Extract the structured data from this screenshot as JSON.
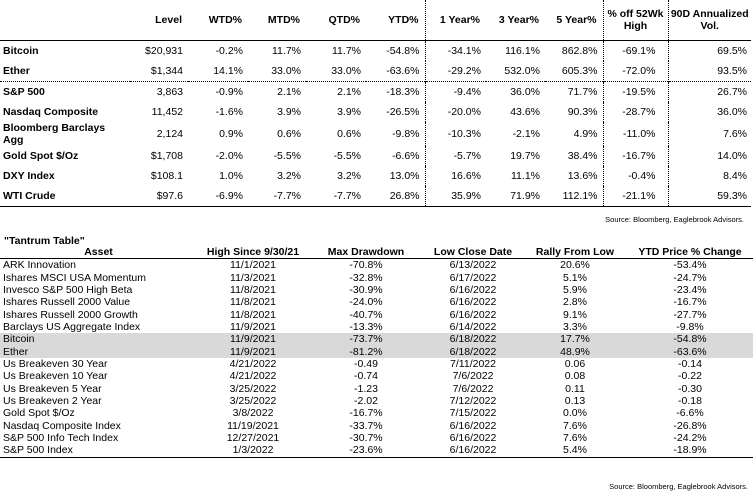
{
  "performance_table": {
    "headers": {
      "level": "Level",
      "wtd": "WTD%",
      "mtd": "MTD%",
      "qtd": "QTD%",
      "ytd": "YTD%",
      "one_year": "1 Year%",
      "three_year": "3 Year%",
      "five_year": "5 Year%",
      "off_52wk": "% off 52Wk High",
      "vol_90d": "90D Annualized Vol."
    },
    "rows": [
      {
        "name": "Bitcoin",
        "level": "$20,931",
        "wtd": "-0.2%",
        "mtd": "11.7%",
        "qtd": "11.7%",
        "ytd": "-54.8%",
        "one_year": "-34.1%",
        "three_year": "116.1%",
        "five_year": "862.8%",
        "off_52wk": "-69.1%",
        "vol_90d": "69.5%"
      },
      {
        "name": "Ether",
        "level": "$1,344",
        "wtd": "14.1%",
        "mtd": "33.0%",
        "qtd": "33.0%",
        "ytd": "-63.6%",
        "one_year": "-29.2%",
        "three_year": "532.0%",
        "five_year": "605.3%",
        "off_52wk": "-72.0%",
        "vol_90d": "93.5%"
      },
      {
        "name": "S&P 500",
        "level": "3,863",
        "wtd": "-0.9%",
        "mtd": "2.1%",
        "qtd": "2.1%",
        "ytd": "-18.3%",
        "one_year": "-9.4%",
        "three_year": "36.0%",
        "five_year": "71.7%",
        "off_52wk": "-19.5%",
        "vol_90d": "26.7%"
      },
      {
        "name": "Nasdaq Composite",
        "level": "11,452",
        "wtd": "-1.6%",
        "mtd": "3.9%",
        "qtd": "3.9%",
        "ytd": "-26.5%",
        "one_year": "-20.0%",
        "three_year": "43.6%",
        "five_year": "90.3%",
        "off_52wk": "-28.7%",
        "vol_90d": "36.0%"
      },
      {
        "name": "Bloomberg Barclays Agg",
        "level": "2,124",
        "wtd": "0.9%",
        "mtd": "0.6%",
        "qtd": "0.6%",
        "ytd": "-9.8%",
        "one_year": "-10.3%",
        "three_year": "-2.1%",
        "five_year": "4.9%",
        "off_52wk": "-11.0%",
        "vol_90d": "7.6%"
      },
      {
        "name": "Gold Spot $/Oz",
        "level": "$1,708",
        "wtd": "-2.0%",
        "mtd": "-5.5%",
        "qtd": "-5.5%",
        "ytd": "-6.6%",
        "one_year": "-5.7%",
        "three_year": "19.7%",
        "five_year": "38.4%",
        "off_52wk": "-16.7%",
        "vol_90d": "14.0%"
      },
      {
        "name": "DXY Index",
        "level": "$108.1",
        "wtd": "1.0%",
        "mtd": "3.2%",
        "qtd": "3.2%",
        "ytd": "13.0%",
        "one_year": "16.6%",
        "three_year": "11.1%",
        "five_year": "13.6%",
        "off_52wk": "-0.4%",
        "vol_90d": "8.4%"
      },
      {
        "name": "WTI Crude",
        "level": "$97.6",
        "wtd": "-6.9%",
        "mtd": "-7.7%",
        "qtd": "-7.7%",
        "ytd": "26.8%",
        "one_year": "35.9%",
        "three_year": "71.9%",
        "five_year": "112.1%",
        "off_52wk": "-21.1%",
        "vol_90d": "59.3%"
      }
    ],
    "source": "Source: Bloomberg, Eaglebrook Advisors."
  },
  "tantrum_table": {
    "title": "\"Tantrum Table\"",
    "headers": {
      "asset": "Asset",
      "high_since": "High Since 9/30/21",
      "max_drawdown": "Max Drawdown",
      "low_close_date": "Low Close Date",
      "rally_from_low": "Rally From Low",
      "ytd_price_change": "YTD Price % Change"
    },
    "rows": [
      {
        "asset": "ARK Innovation",
        "high": "11/1/2021",
        "drawdown": "-70.8%",
        "low_date": "6/13/2022",
        "rally": "20.6%",
        "ytd": "-53.4%"
      },
      {
        "asset": "Ishares MSCI USA Momentum",
        "high": "11/3/2021",
        "drawdown": "-32.8%",
        "low_date": "6/17/2022",
        "rally": "5.1%",
        "ytd": "-24.7%"
      },
      {
        "asset": "Invesco S&P 500 High Beta",
        "high": "11/8/2021",
        "drawdown": "-30.9%",
        "low_date": "6/16/2022",
        "rally": "5.9%",
        "ytd": "-23.4%"
      },
      {
        "asset": "Ishares Russell 2000 Value",
        "high": "11/8/2021",
        "drawdown": "-24.0%",
        "low_date": "6/16/2022",
        "rally": "2.8%",
        "ytd": "-16.7%"
      },
      {
        "asset": "Ishares Russell 2000 Growth",
        "high": "11/8/2021",
        "drawdown": "-40.7%",
        "low_date": "6/16/2022",
        "rally": "9.1%",
        "ytd": "-27.7%"
      },
      {
        "asset": "Barclays US Aggregate Index",
        "high": "11/9/2021",
        "drawdown": "-13.3%",
        "low_date": "6/14/2022",
        "rally": "3.3%",
        "ytd": "-9.8%"
      },
      {
        "asset": "Bitcoin",
        "high": "11/9/2021",
        "drawdown": "-73.7%",
        "low_date": "6/18/2022",
        "rally": "17.7%",
        "ytd": "-54.8%"
      },
      {
        "asset": "Ether",
        "high": "11/9/2021",
        "drawdown": "-81.2%",
        "low_date": "6/18/2022",
        "rally": "48.9%",
        "ytd": "-63.6%"
      },
      {
        "asset": "Us Breakeven 30 Year",
        "high": "4/21/2022",
        "drawdown": "-0.49",
        "low_date": "7/11/2022",
        "rally": "0.06",
        "ytd": "-0.14"
      },
      {
        "asset": "Us Breakeven 10 Year",
        "high": "4/21/2022",
        "drawdown": "-0.74",
        "low_date": "7/6/2022",
        "rally": "0.08",
        "ytd": "-0.22"
      },
      {
        "asset": "Us Breakeven 5 Year",
        "high": "3/25/2022",
        "drawdown": "-1.23",
        "low_date": "7/6/2022",
        "rally": "0.11",
        "ytd": "-0.30"
      },
      {
        "asset": "Us Breakeven 2 Year",
        "high": "3/25/2022",
        "drawdown": "-2.02",
        "low_date": "7/12/2022",
        "rally": "0.13",
        "ytd": "-0.18"
      },
      {
        "asset": "Gold Spot  $/Oz",
        "high": "3/8/2022",
        "drawdown": "-16.7%",
        "low_date": "7/15/2022",
        "rally": "0.0%",
        "ytd": "-6.6%"
      },
      {
        "asset": "Nasdaq Composite Index",
        "high": "11/19/2021",
        "drawdown": "-33.7%",
        "low_date": "6/16/2022",
        "rally": "7.6%",
        "ytd": "-26.8%"
      },
      {
        "asset": "S&P 500 Info Tech Index",
        "high": "12/27/2021",
        "drawdown": "-30.7%",
        "low_date": "6/16/2022",
        "rally": "7.6%",
        "ytd": "-24.2%"
      },
      {
        "asset": "S&P 500 Index",
        "high": "1/3/2022",
        "drawdown": "-23.6%",
        "low_date": "6/16/2022",
        "rally": "5.4%",
        "ytd": "-18.9%"
      }
    ],
    "highlighted_assets": [
      "Bitcoin",
      "Ether"
    ],
    "highlight_color": "#d9d9d9",
    "source": "Source: Bloomberg, Eaglebrook Advisors."
  }
}
